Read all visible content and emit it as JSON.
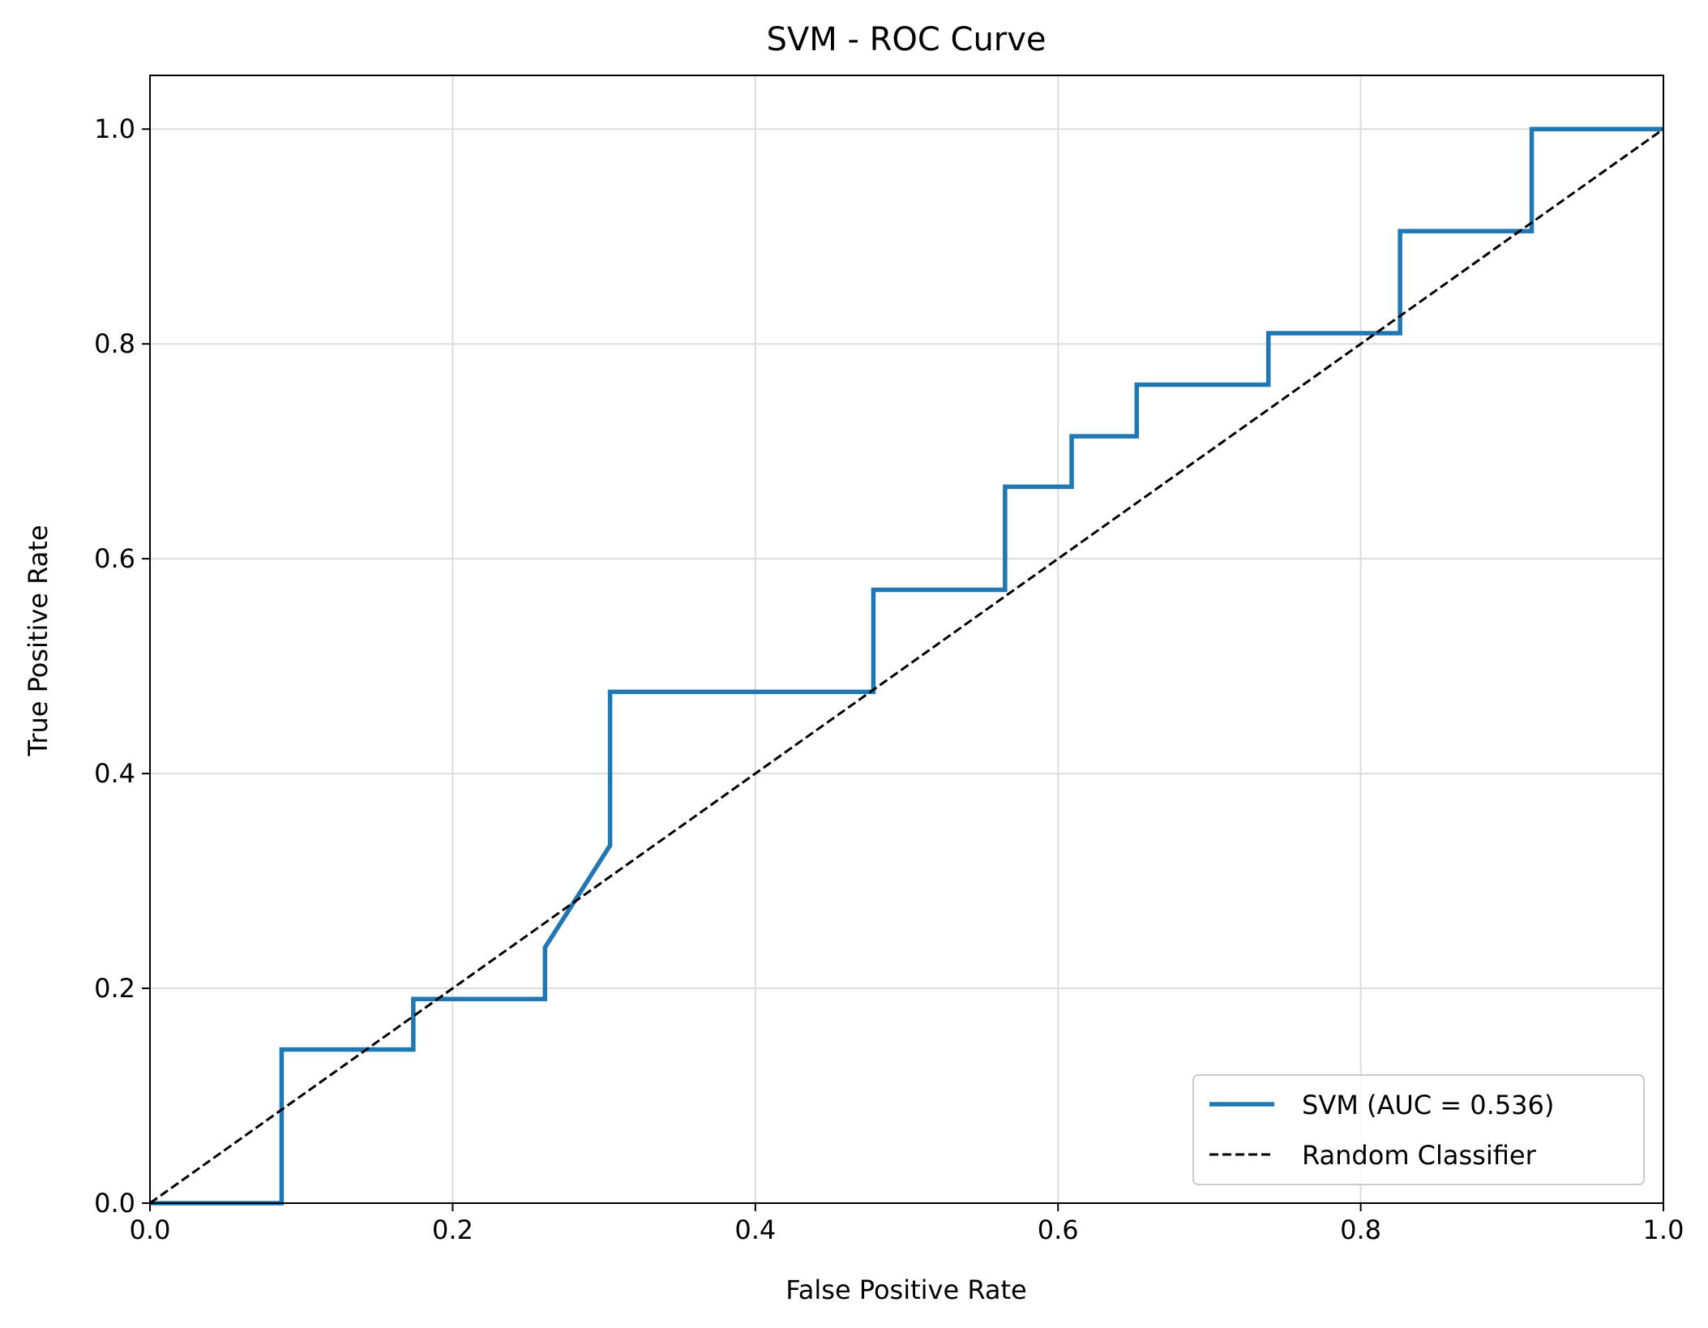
{
  "chart_data": {
    "type": "line",
    "title": "SVM - ROC Curve",
    "xlabel": "False Positive Rate",
    "ylabel": "True Positive Rate",
    "xlim": [
      0,
      1
    ],
    "ylim": [
      0,
      1.05
    ],
    "x_ticks": [
      0.0,
      0.2,
      0.4,
      0.6,
      0.8,
      1.0
    ],
    "y_ticks": [
      0.0,
      0.2,
      0.4,
      0.6,
      0.8,
      1.0
    ],
    "x_tick_labels": [
      "0.0",
      "0.2",
      "0.4",
      "0.6",
      "0.8",
      "1.0"
    ],
    "y_tick_labels": [
      "0.0",
      "0.2",
      "0.4",
      "0.6",
      "0.8",
      "1.0"
    ],
    "grid": true,
    "legend_position": "lower-right",
    "series": [
      {
        "name": "SVM (AUC = 0.536)",
        "color": "#1f77b4",
        "style": "solid",
        "points": [
          [
            0.0,
            0.0
          ],
          [
            0.087,
            0.0
          ],
          [
            0.087,
            0.143
          ],
          [
            0.174,
            0.143
          ],
          [
            0.174,
            0.19
          ],
          [
            0.261,
            0.19
          ],
          [
            0.261,
            0.238
          ],
          [
            0.304,
            0.333
          ],
          [
            0.304,
            0.476
          ],
          [
            0.478,
            0.476
          ],
          [
            0.478,
            0.571
          ],
          [
            0.565,
            0.571
          ],
          [
            0.565,
            0.667
          ],
          [
            0.609,
            0.667
          ],
          [
            0.609,
            0.714
          ],
          [
            0.652,
            0.714
          ],
          [
            0.652,
            0.762
          ],
          [
            0.739,
            0.762
          ],
          [
            0.739,
            0.81
          ],
          [
            0.826,
            0.81
          ],
          [
            0.826,
            0.905
          ],
          [
            0.913,
            0.905
          ],
          [
            0.913,
            1.0
          ],
          [
            1.0,
            1.0
          ]
        ]
      },
      {
        "name": "Random Classifier",
        "color": "#000000",
        "style": "dashed",
        "points": [
          [
            0.0,
            0.0
          ],
          [
            1.0,
            1.0
          ]
        ]
      }
    ]
  }
}
